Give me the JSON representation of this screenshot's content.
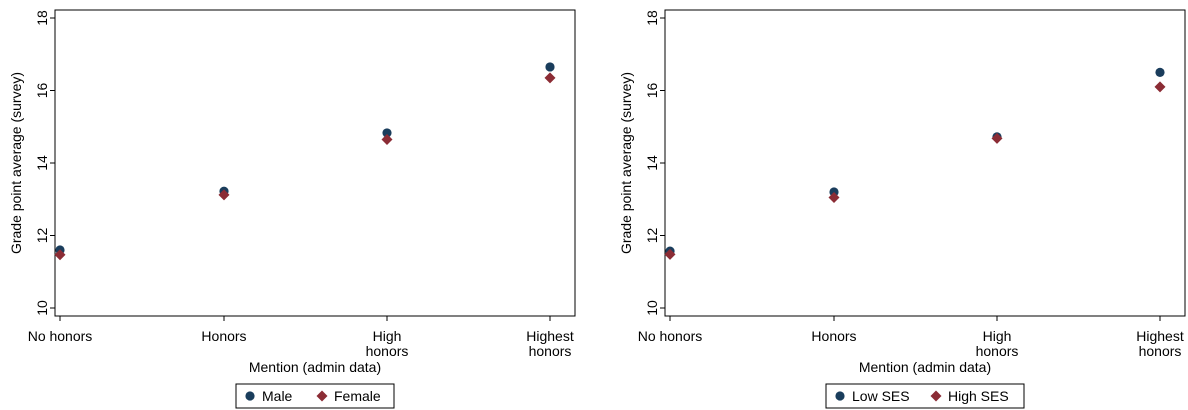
{
  "chart_data": [
    {
      "type": "scatter",
      "categories": [
        "No honors",
        "Honors",
        "High honors",
        "Highest honors"
      ],
      "category_lines": [
        [
          "No honors"
        ],
        [
          "Honors"
        ],
        [
          "High",
          "honors"
        ],
        [
          "Highest",
          "honors"
        ]
      ],
      "series": [
        {
          "name": "Male",
          "values": [
            11.6,
            13.22,
            14.83,
            16.65
          ],
          "color": "#1a3d5c",
          "marker": "circle"
        },
        {
          "name": "Female",
          "values": [
            11.47,
            13.12,
            14.65,
            16.35
          ],
          "color": "#8b2c35",
          "marker": "diamond"
        }
      ],
      "ylabel": "Grade point average (survey)",
      "xlabel": "Mention (admin data)",
      "ylim": [
        10,
        18
      ],
      "yticks": [
        "10",
        "12",
        "14",
        "16",
        "18"
      ],
      "grid": false,
      "legend_position": "bottom"
    },
    {
      "type": "scatter",
      "categories": [
        "No honors",
        "Honors",
        "High honors",
        "Highest honors"
      ],
      "category_lines": [
        [
          "No honors"
        ],
        [
          "Honors"
        ],
        [
          "High",
          "honors"
        ],
        [
          "Highest",
          "honors"
        ]
      ],
      "series": [
        {
          "name": "Low SES",
          "values": [
            11.57,
            13.2,
            14.72,
            16.5
          ],
          "color": "#1a3d5c",
          "marker": "circle"
        },
        {
          "name": "High SES",
          "values": [
            11.48,
            13.05,
            14.68,
            16.1
          ],
          "color": "#8b2c35",
          "marker": "diamond"
        }
      ],
      "ylabel": "Grade point average (survey)",
      "xlabel": "Mention (admin data)",
      "ylim": [
        10,
        18
      ],
      "yticks": [
        "10",
        "12",
        "14",
        "16",
        "18"
      ],
      "grid": false,
      "legend_position": "bottom"
    }
  ]
}
